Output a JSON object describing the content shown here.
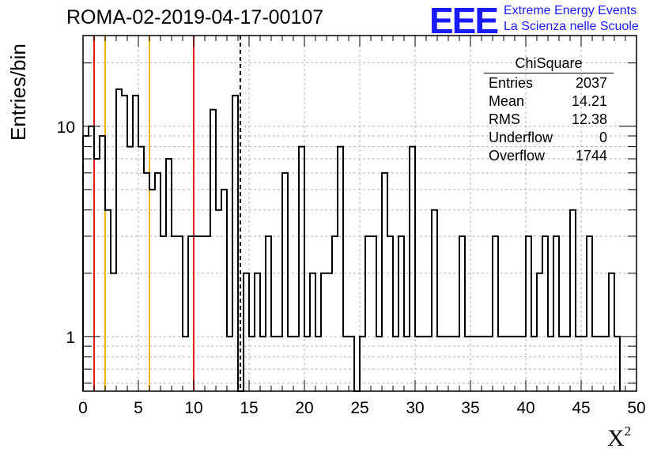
{
  "run_title": "ROMA-02-2019-04-17-00107",
  "logo": {
    "mark": "EEE",
    "line1": "Extreme Energy Events",
    "line2": "La Scienza nelle Scuole",
    "color": "#1a1aff"
  },
  "stats": {
    "title": "ChiSquare",
    "rows": [
      {
        "label": "Entries",
        "value": "2037"
      },
      {
        "label": "Mean",
        "value": "14.21"
      },
      {
        "label": "RMS",
        "value": "12.38"
      },
      {
        "label": "Underflow",
        "value": "0"
      },
      {
        "label": "Overflow",
        "value": "1744"
      }
    ]
  },
  "chart_data": {
    "type": "bar",
    "title": "ROMA-02-2019-04-17-00107",
    "xlabel": "X",
    "xlabel_sup": "2",
    "ylabel": "Entries/bin",
    "xlim": [
      0,
      50
    ],
    "ylim": [
      0.55,
      27
    ],
    "y_scale": "log",
    "grid": true,
    "bin_width": 0.5,
    "x_ticks": [
      0,
      5,
      10,
      15,
      20,
      25,
      30,
      35,
      40,
      45,
      50
    ],
    "x_tick_labels": [
      "0",
      "5",
      "10",
      "15",
      "20",
      "25",
      "30",
      "35",
      "40",
      "45",
      "50"
    ],
    "y_ticks": [
      1,
      10
    ],
    "y_tick_labels": [
      "1",
      "10"
    ],
    "counts": [
      9,
      10,
      7,
      9,
      4,
      2,
      15,
      14,
      8,
      14,
      8,
      6,
      5,
      6,
      3,
      7,
      3,
      3,
      1,
      3,
      3,
      3,
      3,
      12,
      4,
      5,
      1,
      14,
      0,
      2,
      1,
      2,
      1,
      3,
      1,
      1,
      6,
      1,
      1,
      8,
      1,
      2,
      1,
      2,
      2,
      3,
      8,
      1,
      1,
      0,
      1,
      3,
      3,
      1,
      6,
      3,
      1,
      3,
      1,
      8,
      1,
      1,
      1,
      4,
      1,
      1,
      1,
      1,
      3,
      1,
      1,
      1,
      1,
      1,
      3,
      1,
      1,
      1,
      1,
      1,
      3,
      1,
      2,
      3,
      1,
      3,
      1,
      1,
      4,
      1,
      1,
      3,
      1,
      1,
      1,
      2,
      1
    ],
    "vertical_lines": [
      {
        "x": 1,
        "color": "#e02020",
        "style": "solid"
      },
      {
        "x": 2,
        "color": "#f0b400",
        "style": "solid"
      },
      {
        "x": 6,
        "color": "#f0b400",
        "style": "solid"
      },
      {
        "x": 10,
        "color": "#e02020",
        "style": "solid"
      },
      {
        "x": 14.21,
        "color": "#000000",
        "style": "dashed"
      }
    ]
  }
}
